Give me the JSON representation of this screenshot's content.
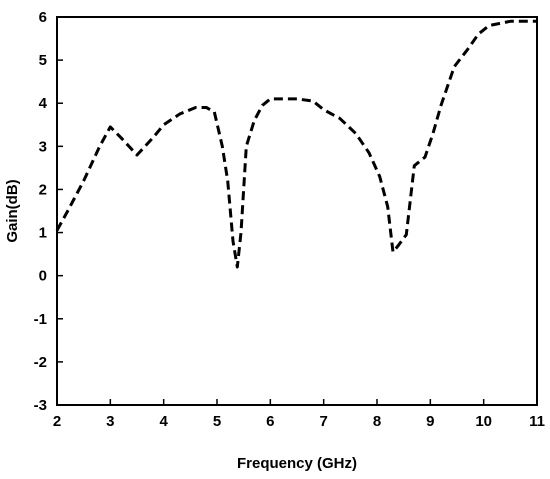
{
  "chart_data": {
    "type": "line",
    "xlabel": "Frequency (GHz)",
    "ylabel": "Gain(dB)",
    "xlim": [
      2,
      11
    ],
    "ylim": [
      -3,
      6
    ],
    "xticks": [
      2,
      3,
      4,
      5,
      6,
      7,
      8,
      9,
      10,
      11
    ],
    "yticks": [
      -3,
      -2,
      -1,
      0,
      1,
      2,
      3,
      4,
      5,
      6
    ],
    "grid": false,
    "legend": "none",
    "line_style": "dashed",
    "line_color": "#000000",
    "series": [
      {
        "x": [
          2.0,
          2.2,
          2.5,
          2.8,
          3.0,
          3.2,
          3.5,
          3.8,
          4.0,
          4.3,
          4.6,
          4.8,
          4.95,
          5.1,
          5.2,
          5.3,
          5.38,
          5.45,
          5.55,
          5.7,
          5.85,
          6.0,
          6.2,
          6.5,
          6.8,
          7.0,
          7.3,
          7.6,
          7.85,
          8.05,
          8.2,
          8.3,
          8.4,
          8.55,
          8.7,
          8.9,
          9.05,
          9.2,
          9.45,
          9.7,
          9.9,
          10.1,
          10.5,
          10.8,
          11.0
        ],
        "y": [
          1.05,
          1.5,
          2.2,
          3.0,
          3.45,
          3.2,
          2.8,
          3.2,
          3.5,
          3.75,
          3.9,
          3.9,
          3.8,
          3.0,
          2.2,
          0.8,
          0.2,
          1.0,
          3.0,
          3.6,
          3.95,
          4.1,
          4.1,
          4.1,
          4.05,
          3.85,
          3.65,
          3.3,
          2.85,
          2.3,
          1.6,
          0.55,
          0.7,
          0.95,
          2.55,
          2.75,
          3.3,
          3.95,
          4.85,
          5.25,
          5.6,
          5.8,
          5.9,
          5.9,
          5.9
        ]
      }
    ]
  }
}
